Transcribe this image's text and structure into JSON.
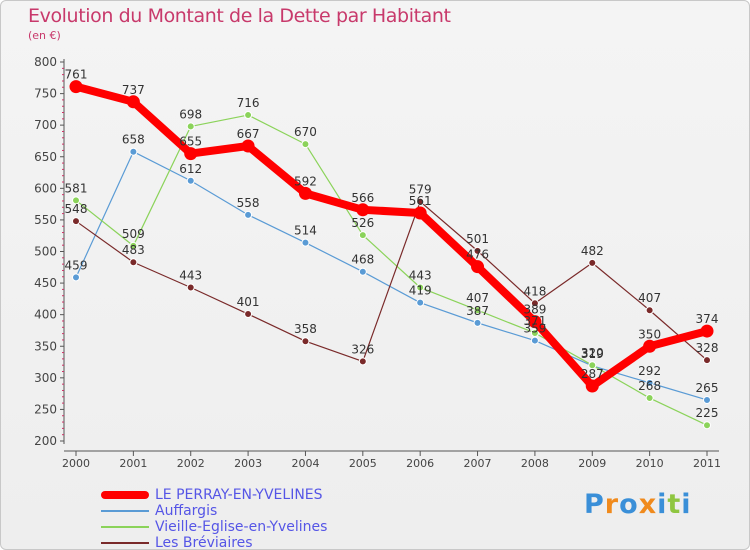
{
  "page": {
    "title": "Evolution du Montant de la Dette par Habitant",
    "subtitle": "(en €)",
    "logo_text": "Proxiti"
  },
  "colors": {
    "title": "#c8396b",
    "legend_text": "#5555e6",
    "axis": "#444444",
    "background": "#eeeeee"
  },
  "chart_data": {
    "type": "line",
    "title": "Evolution du Montant de la Dette par Habitant",
    "ylabel": "(en €)",
    "xlabel": "",
    "x": [
      "2000",
      "2001",
      "2002",
      "2003",
      "2004",
      "2005",
      "2006",
      "2007",
      "2008",
      "2009",
      "2010",
      "2011"
    ],
    "ylim": [
      200,
      800
    ],
    "yticks": [
      200,
      250,
      300,
      350,
      400,
      450,
      500,
      550,
      600,
      650,
      700,
      750,
      800
    ],
    "grid": false,
    "legend_position": "bottom-left",
    "series": [
      {
        "name": "LE PERRAY-EN-YVELINES",
        "color": "#ff0000",
        "values": [
          761,
          737,
          655,
          667,
          592,
          566,
          561,
          476,
          389,
          287,
          350,
          374
        ],
        "labels": [
          "761",
          "737",
          "655",
          "667",
          "592",
          "566",
          "561",
          "476",
          "389",
          "287",
          "350",
          "374"
        ]
      },
      {
        "name": "Auffargis",
        "color": "#5a9bd5",
        "values": [
          459,
          658,
          612,
          558,
          514,
          468,
          419,
          387,
          359,
          319,
          292,
          265
        ],
        "labels": [
          "459",
          "658",
          "612",
          "558",
          "514",
          "468",
          "419",
          "387",
          "359",
          "319",
          "292",
          "265"
        ]
      },
      {
        "name": "Vieille-Eglise-en-Yvelines",
        "color": "#8bd35a",
        "values": [
          581,
          509,
          698,
          716,
          670,
          526,
          443,
          407,
          371,
          320,
          268,
          225
        ],
        "labels": [
          "581",
          "509",
          "698",
          "716",
          "670",
          "526",
          "443",
          "407",
          "371",
          "320",
          "268",
          "225"
        ]
      },
      {
        "name": "Les Bréviaires",
        "color": "#7a2a2a",
        "values": [
          548,
          483,
          443,
          401,
          358,
          326,
          579,
          501,
          418,
          482,
          407,
          328
        ],
        "labels": [
          "548",
          "483",
          "443",
          "401",
          "358",
          "326",
          "579",
          "501",
          "418",
          "482",
          "407",
          "328"
        ]
      }
    ]
  }
}
